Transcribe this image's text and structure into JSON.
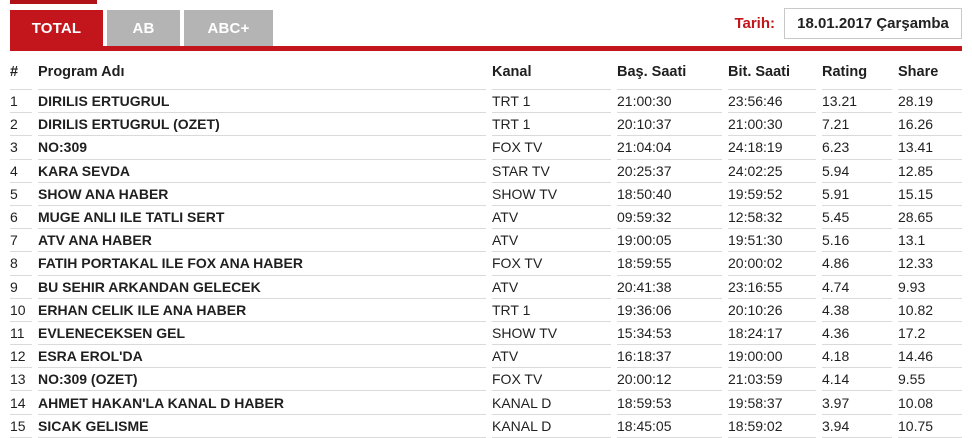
{
  "tabs": [
    {
      "label": "TOTAL",
      "active": true
    },
    {
      "label": "AB",
      "active": false
    },
    {
      "label": "ABC+",
      "active": false
    }
  ],
  "date_filter": {
    "label": "Tarih:",
    "value": "18.01.2017 Çarşamba"
  },
  "table": {
    "columns": [
      "#",
      "Program Adı",
      "Kanal",
      "Baş. Saati",
      "Bit. Saati",
      "Rating",
      "Share"
    ],
    "rows": [
      [
        "1",
        "DIRILIS ERTUGRUL",
        "TRT 1",
        "21:00:30",
        "23:56:46",
        "13.21",
        "28.19"
      ],
      [
        "2",
        "DIRILIS ERTUGRUL (OZET)",
        "TRT 1",
        "20:10:37",
        "21:00:30",
        "7.21",
        "16.26"
      ],
      [
        "3",
        "NO:309",
        "FOX TV",
        "21:04:04",
        "24:18:19",
        "6.23",
        "13.41"
      ],
      [
        "4",
        "KARA SEVDA",
        "STAR TV",
        "20:25:37",
        "24:02:25",
        "5.94",
        "12.85"
      ],
      [
        "5",
        "SHOW ANA HABER",
        "SHOW TV",
        "18:50:40",
        "19:59:52",
        "5.91",
        "15.15"
      ],
      [
        "6",
        "MUGE ANLI ILE TATLI SERT",
        "ATV",
        "09:59:32",
        "12:58:32",
        "5.45",
        "28.65"
      ],
      [
        "7",
        "ATV ANA HABER",
        "ATV",
        "19:00:05",
        "19:51:30",
        "5.16",
        "13.1"
      ],
      [
        "8",
        "FATIH PORTAKAL ILE FOX ANA HABER",
        "FOX TV",
        "18:59:55",
        "20:00:02",
        "4.86",
        "12.33"
      ],
      [
        "9",
        "BU SEHIR ARKANDAN GELECEK",
        "ATV",
        "20:41:38",
        "23:16:55",
        "4.74",
        "9.93"
      ],
      [
        "10",
        "ERHAN CELIK ILE ANA HABER",
        "TRT 1",
        "19:36:06",
        "20:10:26",
        "4.38",
        "10.82"
      ],
      [
        "11",
        "EVLENECEKSEN GEL",
        "SHOW TV",
        "15:34:53",
        "18:24:17",
        "4.36",
        "17.2"
      ],
      [
        "12",
        "ESRA EROL'DA",
        "ATV",
        "16:18:37",
        "19:00:00",
        "4.18",
        "14.46"
      ],
      [
        "13",
        "NO:309 (OZET)",
        "FOX TV",
        "20:00:12",
        "21:03:59",
        "4.14",
        "9.55"
      ],
      [
        "14",
        "AHMET HAKAN'LA KANAL D HABER",
        "KANAL D",
        "18:59:53",
        "19:58:37",
        "3.97",
        "10.08"
      ],
      [
        "15",
        "SICAK GELISME",
        "KANAL D",
        "18:45:05",
        "18:59:02",
        "3.94",
        "10.75"
      ]
    ]
  },
  "colors": {
    "accent_red": "#c3161c",
    "tab_inactive_gray": "#b4b4b4",
    "row_border": "#dadada"
  }
}
